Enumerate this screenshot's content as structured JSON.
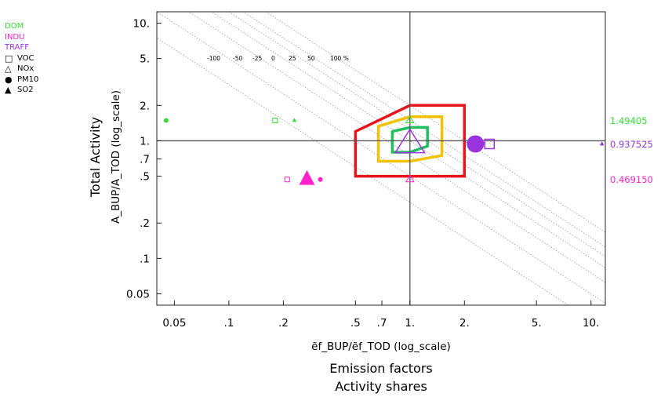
{
  "chart_data": {
    "type": "scatter",
    "xlabel": "ẽf_BUP/ẽf_TOD (log_scale)",
    "subtitles": [
      "Emission factors",
      "Activity shares"
    ],
    "ylabel": "Total Activity",
    "ylabel2": "A_BUP/A_TOD (log_scale)",
    "xscale": "log",
    "yscale": "log",
    "xlim": [
      0.04,
      12
    ],
    "ylim": [
      0.04,
      12.5
    ],
    "x_ticks": [
      {
        "v": 0.05,
        "label": "0.05"
      },
      {
        "v": 0.1,
        "label": ".1"
      },
      {
        "v": 0.2,
        "label": ".2"
      },
      {
        "v": 0.5,
        "label": ".5"
      },
      {
        "v": 0.7,
        "label": ".7"
      },
      {
        "v": 1,
        "label": "1."
      },
      {
        "v": 2,
        "label": "2."
      },
      {
        "v": 5,
        "label": "5."
      },
      {
        "v": 10,
        "label": "10."
      }
    ],
    "y_ticks": [
      {
        "v": 10,
        "label": "10."
      },
      {
        "v": 5,
        "label": "5."
      },
      {
        "v": 2,
        "label": "2."
      },
      {
        "v": 1,
        "label": "1."
      },
      {
        "v": 0.7,
        "label": ".7"
      },
      {
        "v": 0.5,
        "label": ".5"
      },
      {
        "v": 0.2,
        "label": ".2"
      },
      {
        "v": 0.1,
        "label": ".1"
      },
      {
        "v": 0.05,
        "label": "0.05"
      }
    ],
    "iso_labels": [
      "-100",
      "-50",
      "-25",
      "0",
      "25",
      "50",
      "100 %"
    ],
    "iso_lines_product": [
      0.3,
      0.5,
      0.75,
      1,
      1.25,
      1.5,
      2
    ],
    "contours": [
      {
        "color": "#e8141b",
        "points": [
          [
            0.5,
            0.5
          ],
          [
            0.5,
            1.2
          ],
          [
            1,
            2
          ],
          [
            2,
            2
          ],
          [
            2,
            1
          ],
          [
            2,
            0.5
          ],
          [
            1,
            0.5
          ]
        ]
      },
      {
        "color": "#f2c200",
        "points": [
          [
            0.67,
            0.67
          ],
          [
            0.67,
            1.33
          ],
          [
            1,
            1.6
          ],
          [
            1.5,
            1.6
          ],
          [
            1.5,
            0.75
          ],
          [
            1,
            0.67
          ]
        ]
      },
      {
        "color": "#20c060",
        "points": [
          [
            0.8,
            0.8
          ],
          [
            0.8,
            1.2
          ],
          [
            1,
            1.3
          ],
          [
            1.25,
            1.3
          ],
          [
            1.25,
            0.9
          ],
          [
            1,
            0.8
          ]
        ]
      }
    ],
    "legend": {
      "sectors": [
        {
          "name": "DOM",
          "color": "#33dd33"
        },
        {
          "name": "INDU",
          "color": "#ff22cc"
        },
        {
          "name": "TRAFF",
          "color": "#9933dd"
        }
      ],
      "pollutants": [
        {
          "name": "VOC",
          "marker": "square-open"
        },
        {
          "name": "NOx",
          "marker": "triangle-open"
        },
        {
          "name": "PM10",
          "marker": "circle-filled"
        },
        {
          "name": "SO2",
          "marker": "triangle-filled"
        }
      ]
    },
    "points": [
      {
        "sector": "DOM",
        "pollutant": "PM10",
        "x": 0.045,
        "y": 1.49,
        "size": "small"
      },
      {
        "sector": "DOM",
        "pollutant": "VOC",
        "x": 0.18,
        "y": 1.49,
        "size": "small"
      },
      {
        "sector": "DOM",
        "pollutant": "SO2",
        "x": 0.23,
        "y": 1.49,
        "size": "small"
      },
      {
        "sector": "DOM",
        "pollutant": "NOx",
        "x": 1.0,
        "y": 1.49,
        "size": "small"
      },
      {
        "sector": "INDU",
        "pollutant": "VOC",
        "x": 0.21,
        "y": 0.469,
        "size": "small"
      },
      {
        "sector": "INDU",
        "pollutant": "SO2",
        "x": 0.27,
        "y": 0.469,
        "size": "large"
      },
      {
        "sector": "INDU",
        "pollutant": "PM10",
        "x": 0.32,
        "y": 0.469,
        "size": "small"
      },
      {
        "sector": "INDU",
        "pollutant": "NOx",
        "x": 1.0,
        "y": 0.469,
        "size": "small"
      },
      {
        "sector": "TRAFF",
        "pollutant": "NOx",
        "x": 1.0,
        "y": 0.94,
        "size": "large"
      },
      {
        "sector": "TRAFF",
        "pollutant": "PM10",
        "x": 2.3,
        "y": 0.94,
        "size": "large"
      },
      {
        "sector": "TRAFF",
        "pollutant": "VOC",
        "x": 2.75,
        "y": 0.94,
        "size": "medium"
      },
      {
        "sector": "TRAFF",
        "pollutant": "SO2",
        "x": 11.5,
        "y": 0.94,
        "size": "small"
      }
    ],
    "right_labels": [
      {
        "y": 1.49405,
        "text": "1.49405",
        "color": "#33dd33"
      },
      {
        "y": 0.937525,
        "text": "0.937525",
        "color": "#9933dd"
      },
      {
        "y": 0.46915,
        "text": "0.469150",
        "color": "#ff22cc"
      }
    ]
  }
}
